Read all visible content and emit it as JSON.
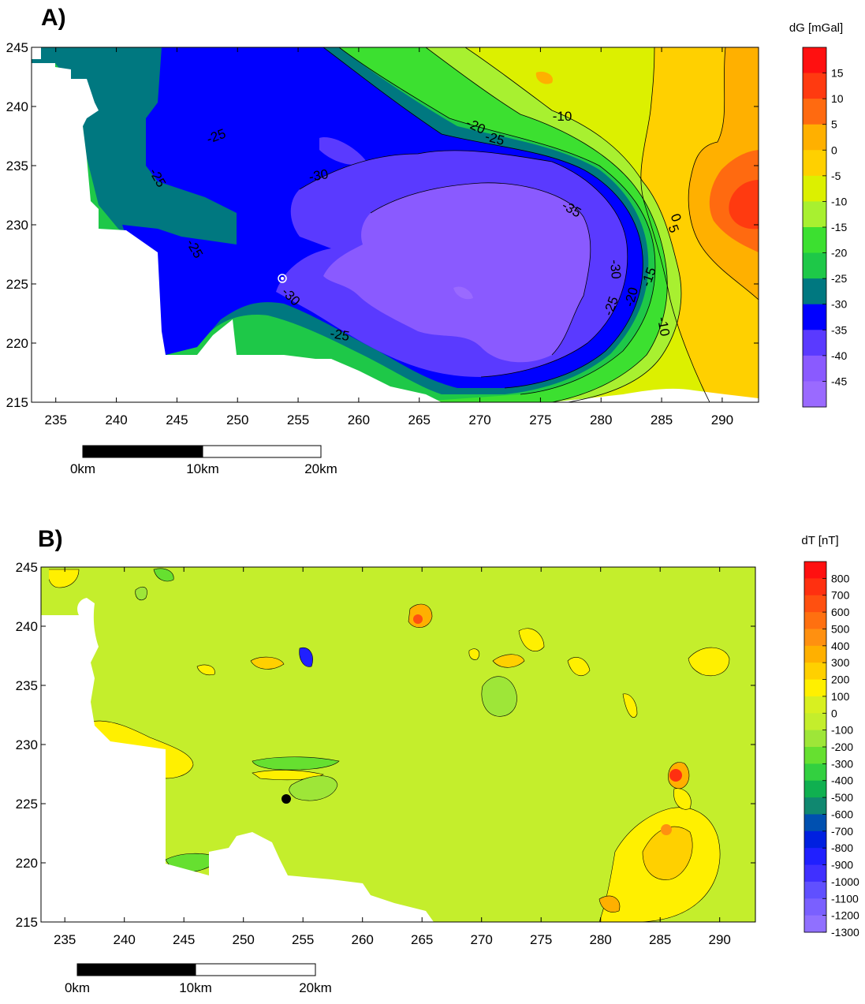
{
  "chart_data": [
    {
      "type": "heatmap",
      "panel_label": "A)",
      "colorbar_title": "dG [mGal]",
      "x_ticks": [
        "235",
        "240",
        "245",
        "250",
        "255",
        "260",
        "265",
        "270",
        "275",
        "280",
        "285",
        "290"
      ],
      "y_ticks": [
        "245",
        "240",
        "235",
        "230",
        "225",
        "220",
        "215"
      ],
      "xlim": [
        233,
        293
      ],
      "ylim": [
        215,
        245
      ],
      "colorbar_levels": [
        "15",
        "10",
        "5",
        "0",
        "-5",
        "-10",
        "-15",
        "-20",
        "-25",
        "-30",
        "-35",
        "-40",
        "-45"
      ],
      "colors": [
        "#ff1010",
        "#ff3a10",
        "#ff6a10",
        "#ffb000",
        "#ffd000",
        "#dcf000",
        "#a8f030",
        "#3ce030",
        "#1ec848",
        "#007880",
        "#0000ff",
        "#5a3aff",
        "#8a5aff",
        "#9a6aff"
      ],
      "contour_labels": [
        "-25",
        "-25",
        "-25",
        "-20",
        "-25",
        "-10",
        "-30",
        "-35",
        "0",
        "5",
        "-30",
        "-15",
        "-20",
        "-25",
        "-10",
        "-30",
        "-25"
      ],
      "scale_bar": {
        "labels": [
          "0km",
          "10km",
          "20km"
        ]
      }
    },
    {
      "type": "heatmap",
      "panel_label": "B)",
      "colorbar_title": "dT [nT]",
      "x_ticks": [
        "235",
        "240",
        "245",
        "250",
        "255",
        "260",
        "265",
        "270",
        "275",
        "280",
        "285",
        "290"
      ],
      "y_ticks": [
        "245",
        "240",
        "235",
        "230",
        "225",
        "220",
        "215"
      ],
      "xlim": [
        233,
        293
      ],
      "ylim": [
        215,
        245
      ],
      "colorbar_levels": [
        "800",
        "700",
        "600",
        "500",
        "400",
        "300",
        "200",
        "100",
        "0",
        "-100",
        "-200",
        "-300",
        "-400",
        "-500",
        "-600",
        "-700",
        "-800",
        "-900",
        "-1000",
        "-1100",
        "-1200",
        "-1300"
      ],
      "colors": [
        "#ff1010",
        "#ff3010",
        "#ff5010",
        "#ff7010",
        "#ff9010",
        "#ffb000",
        "#ffd000",
        "#fff000",
        "#d8f020",
        "#c4ee2c",
        "#9ee638",
        "#66e030",
        "#33d040",
        "#10b050",
        "#108870",
        "#0050b0",
        "#0020e0",
        "#2020ff",
        "#4030ff",
        "#6050ff",
        "#7a60ff",
        "#9070ff"
      ],
      "scale_bar": {
        "labels": [
          "0km",
          "10km",
          "20km"
        ]
      }
    }
  ]
}
